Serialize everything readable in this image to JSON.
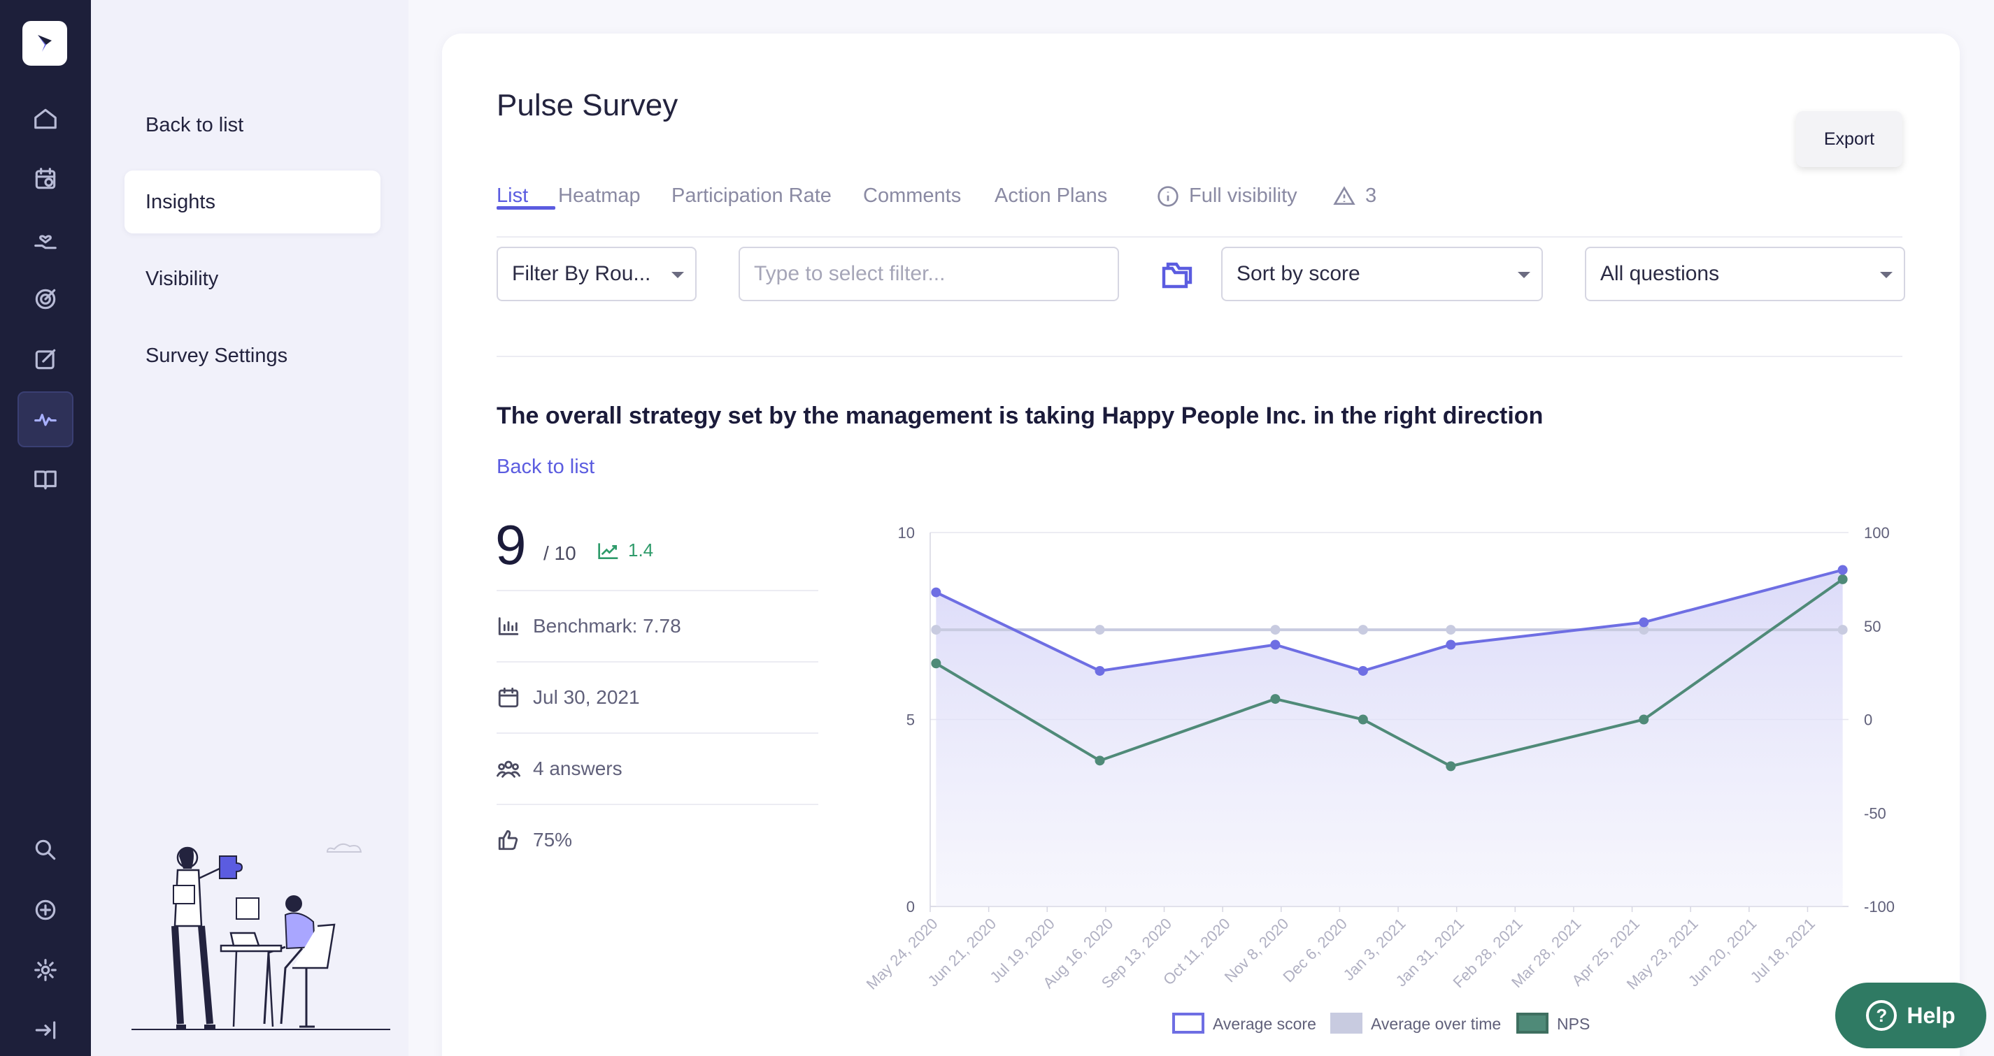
{
  "app": {
    "logo_icon": "bird-logo-icon"
  },
  "rail": {
    "items": [
      {
        "name": "home-icon"
      },
      {
        "name": "calendar-icon"
      },
      {
        "name": "hand-heart-icon"
      },
      {
        "name": "target-icon"
      },
      {
        "name": "edit-icon"
      },
      {
        "name": "pulse-icon",
        "active": true
      },
      {
        "name": "book-icon"
      },
      {
        "name": "search-icon"
      },
      {
        "name": "plus-circle-icon"
      },
      {
        "name": "gear-icon"
      },
      {
        "name": "collapse-arrow-icon"
      }
    ]
  },
  "subnav": {
    "back": "Back to list",
    "insights": "Insights",
    "visibility": "Visibility",
    "settings": "Survey Settings"
  },
  "page": {
    "title": "Pulse Survey",
    "export": "Export"
  },
  "tabs": {
    "list": "List",
    "heatmap": "Heatmap",
    "participation": "Participation Rate",
    "comments": "Comments",
    "action_plans": "Action Plans",
    "visibility": "Full visibility",
    "warnings": "3"
  },
  "filters": {
    "round": "Filter By Rou...",
    "filter_placeholder": "Type to select filter...",
    "sort": "Sort by score",
    "questions": "All questions"
  },
  "question": {
    "text": "The overall strategy set by the management is taking Happy People Inc. in the right direction",
    "back": "Back to list",
    "score": "9",
    "score_total": "/ 10",
    "trend": "1.4",
    "benchmark": "Benchmark: 7.78",
    "date": "Jul 30, 2021",
    "answers": "4 answers",
    "favorable": "75%"
  },
  "colors": {
    "accent": "#5b5ce0",
    "average_score": "#6e6ee3",
    "average_over_time": "#c8cbe0",
    "nps": "#4f8a78"
  },
  "chart_data": {
    "type": "line",
    "categories": [
      "May 24, 2020",
      "Jun 21, 2020",
      "Jul 19, 2020",
      "Aug 16, 2020",
      "Sep 13, 2020",
      "Oct 11, 2020",
      "Nov 8, 2020",
      "Dec 6, 2020",
      "Jan 3, 2021",
      "Jan 31, 2021",
      "Feb 28, 2021",
      "Mar 28, 2021",
      "Apr 25, 2021",
      "May 23, 2021",
      "Jun 20, 2021",
      "Jul 18, 2021"
    ],
    "x_range": [
      0,
      15.7
    ],
    "ylim_left": [
      0,
      10
    ],
    "yticks_left": [
      "0",
      "5",
      "10"
    ],
    "ylim_right": [
      -100,
      100
    ],
    "yticks_right": [
      "-100",
      "-50",
      "0",
      "50",
      "100"
    ],
    "series": [
      {
        "name": "Average score",
        "axis": "left",
        "x": [
          0.1,
          2.9,
          5.9,
          7.4,
          8.9,
          12.2,
          15.6
        ],
        "values": [
          8.4,
          6.3,
          7.0,
          6.3,
          7.0,
          7.6,
          9.0
        ]
      },
      {
        "name": "Average over time",
        "axis": "left",
        "x": [
          0.1,
          2.9,
          5.9,
          7.4,
          8.9,
          12.2,
          15.6
        ],
        "values": [
          7.4,
          7.4,
          7.4,
          7.4,
          7.4,
          7.4,
          7.4
        ]
      },
      {
        "name": "NPS",
        "axis": "right",
        "x": [
          0.1,
          2.9,
          5.9,
          7.4,
          8.9,
          12.2,
          15.6
        ],
        "values": [
          30,
          -22,
          11,
          0,
          -25,
          0,
          75
        ]
      }
    ],
    "legend": [
      "Average score",
      "Average over time",
      "NPS"
    ],
    "grid": true
  },
  "help": {
    "label": "Help"
  }
}
